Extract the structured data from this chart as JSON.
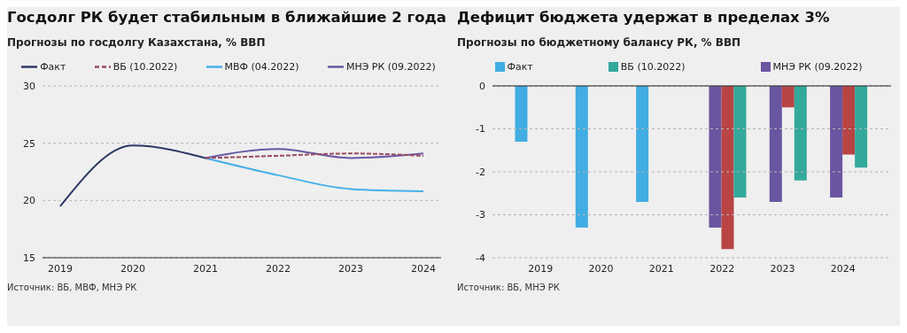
{
  "chart_data": [
    {
      "type": "line",
      "title": "Госдолг РК будет стабильным в ближайшие 2 года",
      "subtitle": "Прогнозы по госдолгу Казахстана, % ВВП",
      "categories": [
        "2019",
        "2020",
        "2021",
        "2022",
        "2023",
        "2024"
      ],
      "series": [
        {
          "name": "Факт",
          "color": "#2e3a66",
          "values": [
            19.5,
            24.8,
            23.7,
            null,
            null,
            null
          ]
        },
        {
          "name": "ВБ (10.2022)",
          "color": "#9b4a5e",
          "line_style": "dashed",
          "values": [
            null,
            null,
            23.7,
            23.9,
            24.1,
            23.9
          ]
        },
        {
          "name": "МВФ (04.2022)",
          "color": "#45b0e8",
          "values": [
            null,
            null,
            23.7,
            22.2,
            21.0,
            20.8
          ]
        },
        {
          "name": "МНЭ РК (09.2022)",
          "color": "#6a57a3",
          "values": [
            null,
            null,
            23.7,
            24.5,
            23.7,
            24.1
          ]
        }
      ],
      "ylim": [
        15,
        30
      ],
      "yticks": [
        15,
        20,
        25,
        30
      ],
      "grid": "y",
      "legend": "top",
      "marker": "none",
      "annotations": [
        "Источник: ВБ, МВФ, МНЭ РК"
      ]
    },
    {
      "type": "bar",
      "title": "Дефицит бюджета удержат в пределах 3%",
      "subtitle": "Прогнозы по бюджетному балансу РК, % ВВП",
      "categories": [
        "2019",
        "2020",
        "2021",
        "2022",
        "2023",
        "2024"
      ],
      "series": [
        {
          "name": "Факт",
          "color": "#42ade3",
          "values": [
            -1.3,
            -3.3,
            -2.7,
            null,
            null,
            null
          ]
        },
        {
          "name": "ВБ (10.2022)",
          "color": "#33a99b",
          "values": [
            null,
            null,
            null,
            -2.6,
            -2.2,
            -1.9
          ]
        },
        {
          "color": "#b84444",
          "values": [
            null,
            null,
            null,
            -3.8,
            -0.5,
            -1.6
          ]
        },
        {
          "name": "МНЭ РК (09.2022)",
          "color": "#6a55a0",
          "values": [
            null,
            null,
            null,
            -3.3,
            -2.7,
            -2.6
          ]
        }
      ],
      "ylim": [
        -4,
        0
      ],
      "yticks": [
        -4,
        -3,
        -2,
        -1,
        0
      ],
      "grid": "y",
      "legend": "top",
      "annotations": [
        "Источник: ВБ, МНЭ РК"
      ]
    }
  ]
}
